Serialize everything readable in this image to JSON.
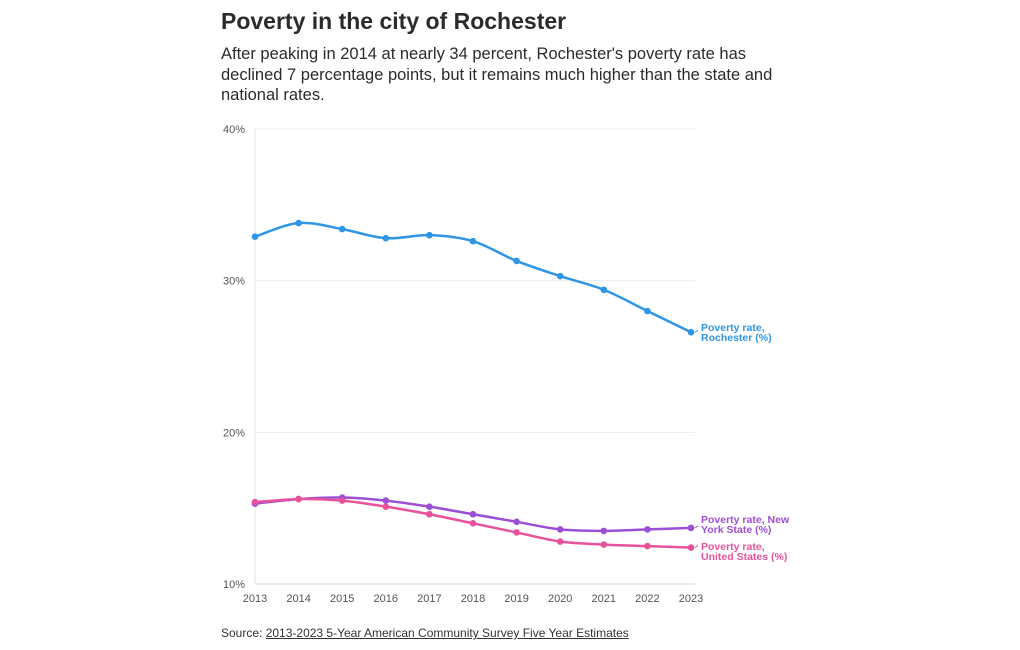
{
  "header": {
    "title": "Poverty in the city of Rochester",
    "subtitle": "After peaking in 2014 at nearly 34 percent, Rochester's poverty rate has declined 7 percentage points, but it remains much higher than the state and national rates."
  },
  "footer": {
    "source_prefix": "Source: ",
    "source_link": "2013-2023 5-Year American Community Survey Five Year Estimates"
  },
  "chart_data": {
    "type": "line",
    "x": [
      2013,
      2014,
      2015,
      2016,
      2017,
      2018,
      2019,
      2020,
      2021,
      2022,
      2023
    ],
    "x_tick_labels": [
      "2013",
      "2014",
      "2015",
      "2016",
      "2017",
      "2018",
      "2019",
      "2020",
      "2021",
      "2022",
      "2023"
    ],
    "ylim": [
      10,
      40
    ],
    "y_ticks": [
      10,
      20,
      30,
      40
    ],
    "y_tick_labels": [
      "10%",
      "20%",
      "30%",
      "40%"
    ],
    "grid": true,
    "legend": "inline labels at line ends (right)",
    "series": [
      {
        "name": "Poverty rate, Rochester (%)",
        "label_lines": [
          "Poverty rate,",
          "Rochester (%)"
        ],
        "color": "#2f96e6",
        "values": [
          32.9,
          33.8,
          33.4,
          32.8,
          33.0,
          32.6,
          31.3,
          30.3,
          29.4,
          28.0,
          26.6
        ]
      },
      {
        "name": "Poverty rate, New York State (%)",
        "label_lines": [
          "Poverty rate, New",
          "York State (%)"
        ],
        "color": "#9b4fd6",
        "values": [
          15.3,
          15.6,
          15.7,
          15.5,
          15.1,
          14.6,
          14.1,
          13.6,
          13.5,
          13.6,
          13.7
        ]
      },
      {
        "name": "Poverty rate, United States (%)",
        "label_lines": [
          "Poverty rate,",
          "United States (%)"
        ],
        "color": "#e8529a",
        "values": [
          15.4,
          15.6,
          15.5,
          15.1,
          14.6,
          14.0,
          13.4,
          12.8,
          12.6,
          12.5,
          12.4
        ]
      }
    ]
  }
}
